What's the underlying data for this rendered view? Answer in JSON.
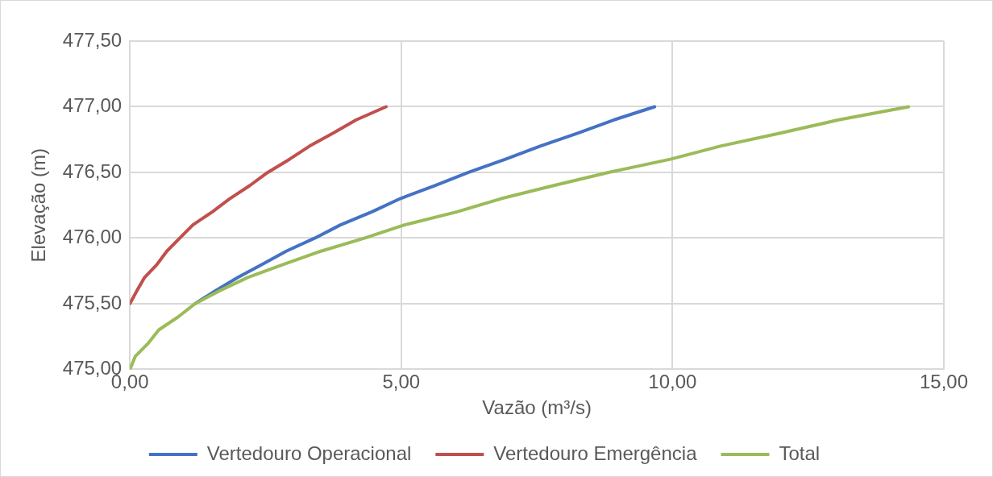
{
  "chart_data": {
    "type": "line",
    "xlabel": "Vazão (m³/s)",
    "ylabel": "Elevação (m)",
    "xlim": [
      0,
      15
    ],
    "xticks": [
      {
        "value": 0,
        "label": "0,00"
      },
      {
        "value": 5,
        "label": "5,00"
      },
      {
        "value": 10,
        "label": "10,00"
      },
      {
        "value": 15,
        "label": "15,00"
      }
    ],
    "ylim": [
      475,
      477.5
    ],
    "yticks": [
      {
        "value": 475,
        "label": "475,00"
      },
      {
        "value": 475.5,
        "label": "475,50"
      },
      {
        "value": 476,
        "label": "476,00"
      },
      {
        "value": 476.5,
        "label": "476,50"
      },
      {
        "value": 477,
        "label": "477,00"
      },
      {
        "value": 477.5,
        "label": "477,50"
      }
    ],
    "grid": true,
    "legend": "bottom",
    "marker": "none",
    "line_style": "solid",
    "series": [
      {
        "name": "Vertedouro Operacional",
        "color": "#4472c4",
        "x": [
          1.2,
          1.58,
          1.99,
          2.44,
          2.88,
          3.41,
          3.88,
          4.46,
          4.98,
          5.62,
          6.24,
          6.92,
          7.56,
          8.26,
          8.92,
          9.67
        ],
        "values": [
          475.5,
          475.6,
          475.7,
          475.8,
          475.9,
          476,
          476.1,
          476.2,
          476.3,
          476.4,
          476.5,
          476.6,
          476.7,
          476.8,
          476.9,
          477
        ]
      },
      {
        "name": "Vertedouro Emergência",
        "color": "#c0504d",
        "x": [
          0,
          0.13,
          0.27,
          0.5,
          0.68,
          0.92,
          1.16,
          1.52,
          1.84,
          2.21,
          2.54,
          2.94,
          3.31,
          3.75,
          4.17,
          4.72
        ],
        "values": [
          475.5,
          475.6,
          475.7,
          475.8,
          475.9,
          476,
          476.1,
          476.2,
          476.3,
          476.4,
          476.5,
          476.6,
          476.7,
          476.8,
          476.9,
          477
        ]
      },
      {
        "name": "Total",
        "color": "#9bbb59",
        "x": [
          0,
          0.1,
          0.34,
          0.53,
          0.89,
          1.2,
          1.66,
          2.17,
          2.83,
          3.52,
          4.33,
          5.06,
          6.03,
          6.84,
          7.81,
          8.82,
          9.96,
          10.88,
          12.0,
          13.06,
          14.35
        ],
        "values": [
          475,
          475.1,
          475.2,
          475.3,
          475.4,
          475.5,
          475.6,
          475.7,
          475.8,
          475.9,
          476,
          476.1,
          476.2,
          476.3,
          476.4,
          476.5,
          476.6,
          476.7,
          476.8,
          476.9,
          477
        ]
      }
    ]
  }
}
